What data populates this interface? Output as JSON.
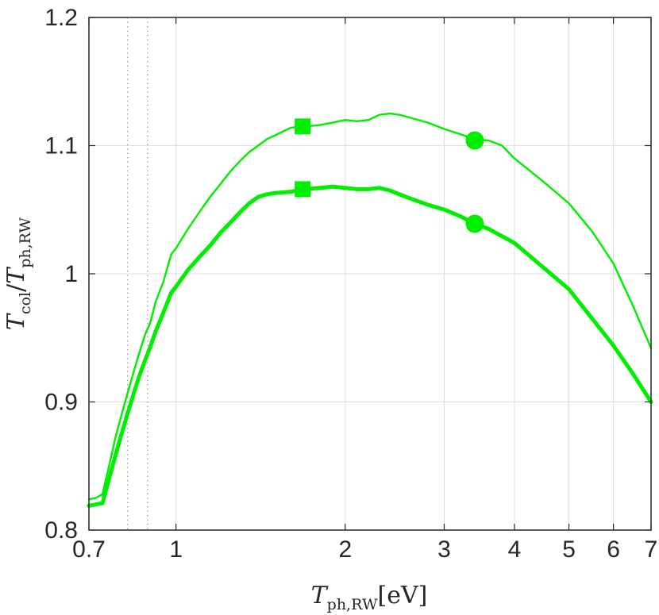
{
  "chart_data": {
    "type": "line",
    "x_scale": "log",
    "xlim": [
      0.7,
      7
    ],
    "ylim": [
      0.8,
      1.2
    ],
    "grid": true,
    "x_ticks": [
      0.7,
      1,
      2,
      3,
      4,
      5,
      6,
      7
    ],
    "x_tick_labels": [
      "0.7",
      "1",
      "2",
      "3",
      "4",
      "5",
      "6",
      "7"
    ],
    "y_ticks": [
      0.8,
      0.9,
      1.0,
      1.1,
      1.2
    ],
    "y_tick_labels": [
      "0.8",
      "0.9",
      "1",
      "1.1",
      "1.2"
    ],
    "xlabel": {
      "symbol": "T",
      "subscript": "ph,RW",
      "unit": "[eV]"
    },
    "ylabel": {
      "num_symbol": "T",
      "num_subscript": "col",
      "separator": "/",
      "den_symbol": "T",
      "den_subscript": "ph,RW"
    },
    "vertical_dotted_lines": [
      0.82,
      0.89
    ],
    "color": "#00ee00",
    "series": [
      {
        "style": "thin",
        "x": [
          0.7,
          0.72,
          0.74,
          0.76,
          0.78,
          0.8,
          0.82,
          0.84,
          0.86,
          0.88,
          0.9,
          0.92,
          0.95,
          0.98,
          1.0,
          1.05,
          1.1,
          1.15,
          1.2,
          1.25,
          1.3,
          1.35,
          1.4,
          1.45,
          1.5,
          1.6,
          1.7,
          1.8,
          1.9,
          2.0,
          2.1,
          2.2,
          2.3,
          2.4,
          2.5,
          2.6,
          2.8,
          3.0,
          3.2,
          3.4,
          3.6,
          3.8,
          4.0,
          4.5,
          5.0,
          5.5,
          6.0,
          6.5,
          7.0
        ],
        "y": [
          0.824,
          0.825,
          0.828,
          0.85,
          0.872,
          0.89,
          0.907,
          0.923,
          0.938,
          0.952,
          0.962,
          0.978,
          0.994,
          1.015,
          1.02,
          1.035,
          1.048,
          1.06,
          1.07,
          1.08,
          1.088,
          1.095,
          1.1,
          1.105,
          1.108,
          1.114,
          1.115,
          1.116,
          1.118,
          1.12,
          1.119,
          1.12,
          1.124,
          1.125,
          1.124,
          1.122,
          1.118,
          1.113,
          1.109,
          1.105,
          1.104,
          1.1,
          1.09,
          1.072,
          1.055,
          1.033,
          1.008,
          0.975,
          0.942
        ]
      },
      {
        "style": "thick",
        "x": [
          0.7,
          0.72,
          0.74,
          0.76,
          0.78,
          0.8,
          0.82,
          0.84,
          0.86,
          0.88,
          0.9,
          0.92,
          0.95,
          0.98,
          1.0,
          1.05,
          1.1,
          1.15,
          1.2,
          1.25,
          1.3,
          1.35,
          1.4,
          1.45,
          1.5,
          1.6,
          1.7,
          1.8,
          1.9,
          2.0,
          2.1,
          2.2,
          2.3,
          2.4,
          2.6,
          2.8,
          3.0,
          3.2,
          3.4,
          3.6,
          4.0,
          4.5,
          5.0,
          5.5,
          6.0,
          6.5,
          7.0
        ],
        "y": [
          0.819,
          0.82,
          0.821,
          0.84,
          0.858,
          0.875,
          0.891,
          0.906,
          0.92,
          0.932,
          0.943,
          0.955,
          0.97,
          0.985,
          0.99,
          1.003,
          1.013,
          1.022,
          1.032,
          1.04,
          1.048,
          1.055,
          1.06,
          1.062,
          1.063,
          1.064,
          1.066,
          1.067,
          1.068,
          1.067,
          1.066,
          1.066,
          1.067,
          1.065,
          1.059,
          1.054,
          1.05,
          1.045,
          1.039,
          1.035,
          1.024,
          1.005,
          0.988,
          0.965,
          0.944,
          0.922,
          0.9
        ]
      }
    ],
    "markers": [
      {
        "shape": "square",
        "x": 1.68,
        "y": 1.115
      },
      {
        "shape": "circle",
        "x": 3.4,
        "y": 1.104
      },
      {
        "shape": "square",
        "x": 1.68,
        "y": 1.066
      },
      {
        "shape": "circle",
        "x": 3.4,
        "y": 1.039
      }
    ]
  }
}
